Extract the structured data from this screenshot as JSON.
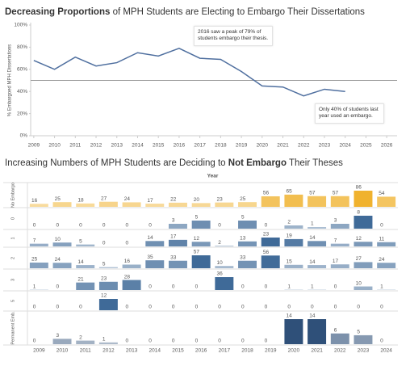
{
  "chart_data": [
    {
      "type": "line",
      "title_runs": [
        {
          "text": "Decreasing Proportions",
          "bold": true
        },
        {
          "text": " of MPH Students are Electing to Embargo Their Dissertations",
          "bold": false
        }
      ],
      "y_label": "% Embargoed MPH Dissertations",
      "x": [
        2009,
        2010,
        2011,
        2012,
        2013,
        2014,
        2015,
        2016,
        2017,
        2018,
        2019,
        2020,
        2021,
        2022,
        2023,
        2024
      ],
      "series": [
        {
          "color": "#4f6f9f",
          "values": [
            68,
            60,
            71,
            63,
            66,
            75,
            72,
            79,
            70,
            69,
            58,
            45,
            44,
            36,
            42,
            40
          ]
        }
      ],
      "reference_line": 50,
      "xlim": [
        2008.85,
        2026.5
      ],
      "xticks": [
        2009,
        2010,
        2011,
        2012,
        2013,
        2014,
        2015,
        2016,
        2017,
        2018,
        2019,
        2020,
        2021,
        2022,
        2023,
        2024,
        2025,
        2026
      ],
      "ylim": [
        0,
        100
      ],
      "yticks": [
        {
          "value": 0,
          "label": "0%"
        },
        {
          "value": 20,
          "label": "20%"
        },
        {
          "value": 40,
          "label": "40%"
        },
        {
          "value": 60,
          "label": "60%"
        },
        {
          "value": 80,
          "label": "80%"
        },
        {
          "value": 100,
          "label": "100%"
        }
      ],
      "grid": false,
      "annotations": [
        "2016 saw a peak of  79% of students embargo their thesis.",
        "Only 40% of students last year used an embargo."
      ]
    },
    {
      "type": "bar-grid",
      "title_runs": [
        {
          "text": "Increasing Numbers of MPH Students are Deciding to ",
          "bold": false
        },
        {
          "text": "Not Embargo",
          "bold": true
        },
        {
          "text": " Their Theses",
          "bold": false
        }
      ],
      "x_label": "Year",
      "categories": [
        "2009",
        "2010",
        "2011",
        "2012",
        "2013",
        "2014",
        "2015",
        "2016",
        "2017",
        "2018",
        "2019",
        "2020",
        "2021",
        "2022",
        "2023",
        "2024"
      ],
      "series": [
        {
          "name": "No Embargo",
          "color": "#f0b22e",
          "values": [
            16,
            25,
            18,
            27,
            24,
            17,
            22,
            20,
            23,
            25,
            56,
            65,
            57,
            57,
            86,
            54
          ]
        },
        {
          "name": "0",
          "color": "#3f6a98",
          "values": [
            0,
            0,
            0,
            0,
            0,
            0,
            3,
            5,
            0,
            5,
            0,
            2,
            1,
            3,
            8,
            0
          ]
        },
        {
          "name": "1",
          "color": "#3f6a98",
          "values": [
            7,
            10,
            5,
            0,
            0,
            14,
            17,
            12,
            2,
            13,
            23,
            19,
            14,
            7,
            12,
            11
          ]
        },
        {
          "name": "2",
          "color": "#3f6a98",
          "values": [
            25,
            24,
            14,
            5,
            16,
            35,
            33,
            57,
            10,
            33,
            56,
            15,
            14,
            17,
            27,
            24
          ]
        },
        {
          "name": "3",
          "color": "#3f6a98",
          "values": [
            1,
            0,
            21,
            23,
            28,
            0,
            0,
            0,
            36,
            0,
            0,
            1,
            1,
            0,
            10,
            1
          ]
        },
        {
          "name": "5",
          "color": "#3f6a98",
          "values": [
            0,
            0,
            0,
            12,
            0,
            0,
            0,
            0,
            0,
            0,
            0,
            0,
            0,
            0,
            0,
            0
          ]
        },
        {
          "name": "Permanent Emb.",
          "color": "#2f5079",
          "values": [
            0,
            3,
            2,
            1,
            0,
            0,
            0,
            0,
            0,
            0,
            0,
            14,
            14,
            6,
            5,
            0
          ]
        }
      ]
    }
  ]
}
